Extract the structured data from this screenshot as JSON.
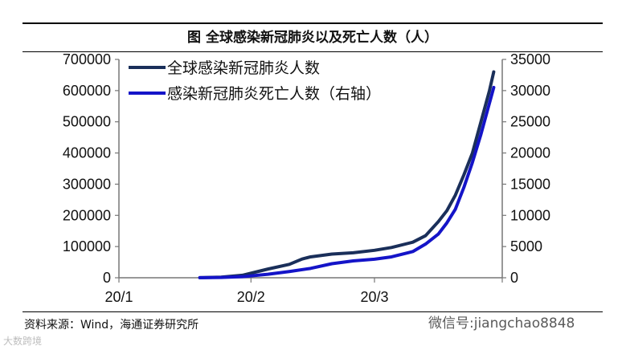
{
  "chart_data": {
    "type": "line",
    "title": "图 全球感染新冠肺炎以及死亡人数（人）",
    "x_ticks": [
      "20/1",
      "20/2",
      "20/3"
    ],
    "y_left": {
      "range": [
        0,
        700000
      ],
      "ticks": [
        "0",
        "100000",
        "200000",
        "300000",
        "400000",
        "500000",
        "600000",
        "700000"
      ]
    },
    "y_right": {
      "range": [
        0,
        35000
      ],
      "ticks": [
        "0",
        "5000",
        "10000",
        "15000",
        "20000",
        "25000",
        "30000",
        "35000"
      ]
    },
    "legend_position": "top-left",
    "series": [
      {
        "name": "全球感染新冠肺炎人数",
        "axis": "left",
        "color": "#1a2f5a",
        "points": [
          [
            "2020-01-20",
            300
          ],
          [
            "2020-01-25",
            2000
          ],
          [
            "2020-01-30",
            8000
          ],
          [
            "2020-02-05",
            28000
          ],
          [
            "2020-02-10",
            43000
          ],
          [
            "2020-02-13",
            60000
          ],
          [
            "2020-02-15",
            67000
          ],
          [
            "2020-02-20",
            76000
          ],
          [
            "2020-02-25",
            80000
          ],
          [
            "2020-03-01",
            88000
          ],
          [
            "2020-03-05",
            97000
          ],
          [
            "2020-03-10",
            114000
          ],
          [
            "2020-03-13",
            135000
          ],
          [
            "2020-03-16",
            180000
          ],
          [
            "2020-03-18",
            215000
          ],
          [
            "2020-03-20",
            265000
          ],
          [
            "2020-03-22",
            330000
          ],
          [
            "2020-03-24",
            400000
          ],
          [
            "2020-03-26",
            500000
          ],
          [
            "2020-03-28",
            600000
          ],
          [
            "2020-03-29",
            660000
          ]
        ]
      },
      {
        "name": "感染新冠肺炎死亡人数（右轴）",
        "axis": "right",
        "color": "#1414c8",
        "points": [
          [
            "2020-01-20",
            10
          ],
          [
            "2020-01-25",
            50
          ],
          [
            "2020-01-30",
            170
          ],
          [
            "2020-02-05",
            560
          ],
          [
            "2020-02-10",
            1000
          ],
          [
            "2020-02-15",
            1500
          ],
          [
            "2020-02-20",
            2250
          ],
          [
            "2020-02-25",
            2700
          ],
          [
            "2020-03-01",
            2980
          ],
          [
            "2020-03-05",
            3350
          ],
          [
            "2020-03-10",
            4200
          ],
          [
            "2020-03-13",
            5400
          ],
          [
            "2020-03-16",
            7000
          ],
          [
            "2020-03-18",
            8800
          ],
          [
            "2020-03-20",
            11000
          ],
          [
            "2020-03-22",
            14500
          ],
          [
            "2020-03-24",
            18500
          ],
          [
            "2020-03-26",
            23000
          ],
          [
            "2020-03-28",
            28000
          ],
          [
            "2020-03-29",
            30500
          ]
        ]
      }
    ]
  },
  "source": "资料来源：Wind，海通证券研究所",
  "watermark_right": "微信号:jiangchao8848",
  "watermark_left": "大数跨境"
}
